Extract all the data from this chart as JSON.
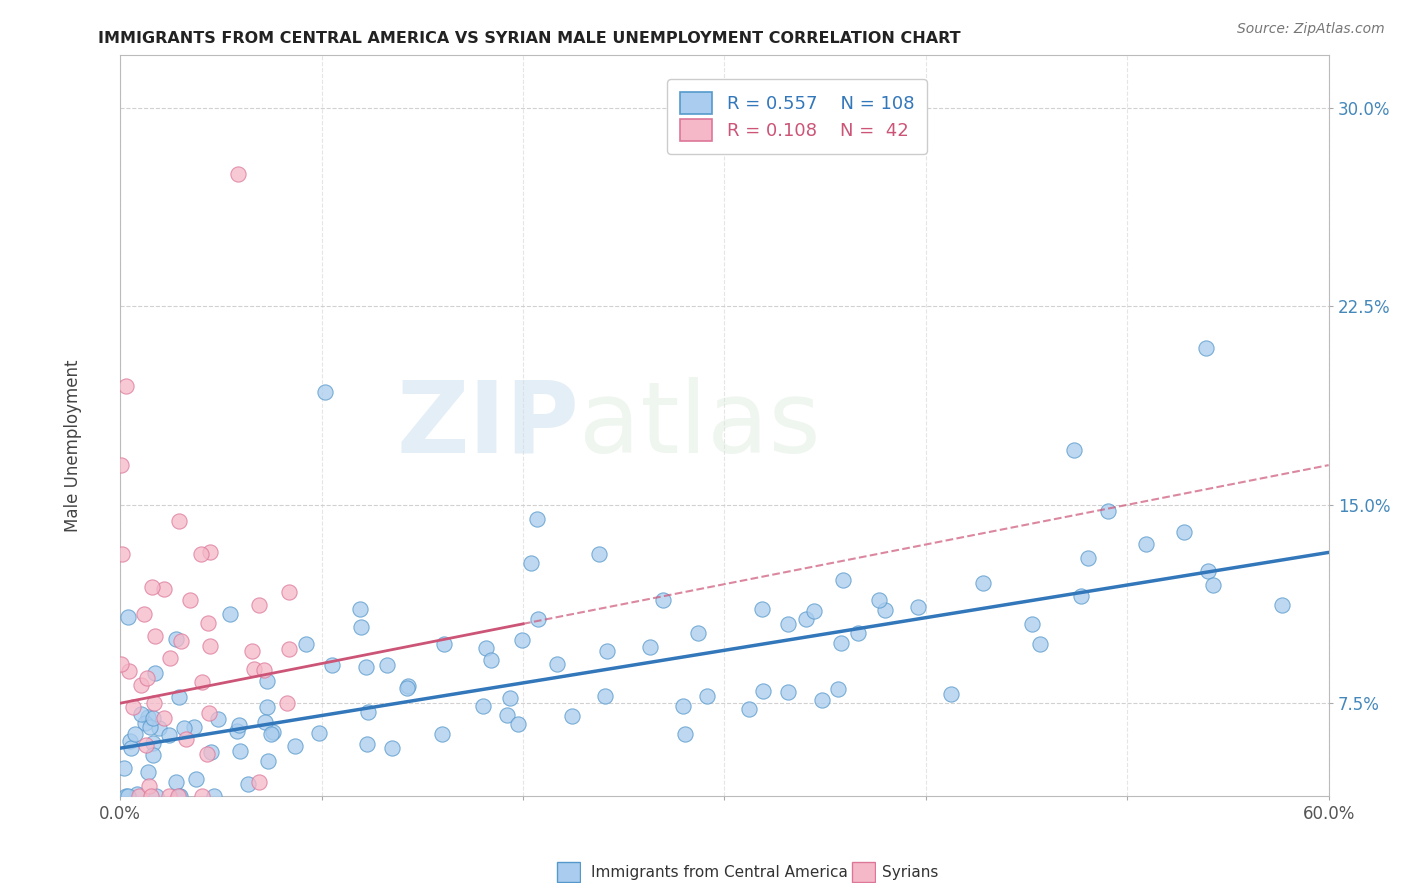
{
  "title": "IMMIGRANTS FROM CENTRAL AMERICA VS SYRIAN MALE UNEMPLOYMENT CORRELATION CHART",
  "source": "Source: ZipAtlas.com",
  "ylabel": "Male Unemployment",
  "xlim": [
    0.0,
    0.6
  ],
  "ylim": [
    0.04,
    0.32
  ],
  "xticks": [
    0.0,
    0.1,
    0.2,
    0.3,
    0.4,
    0.5,
    0.6
  ],
  "xtick_labels": [
    "0.0%",
    "",
    "",
    "",
    "",
    "",
    "60.0%"
  ],
  "ytick_labels": [
    "7.5%",
    "15.0%",
    "22.5%",
    "30.0%"
  ],
  "yticks": [
    0.075,
    0.15,
    0.225,
    0.3
  ],
  "blue_color": "#aaccee",
  "blue_edge_color": "#5599cc",
  "blue_line_color": "#3377bb",
  "pink_color": "#f5b8c8",
  "pink_edge_color": "#dd7799",
  "pink_line_color": "#cc5577",
  "background_color": "#ffffff",
  "grid_color": "#cccccc",
  "watermark": "ZIPatlas",
  "R_blue": 0.557,
  "N_blue": 108,
  "R_pink": 0.108,
  "N_pink": 42,
  "blue_line_x0": 0.0,
  "blue_line_y0": 0.058,
  "blue_line_x1": 0.6,
  "blue_line_y1": 0.132,
  "pink_line_x0": 0.0,
  "pink_line_y0": 0.075,
  "pink_line_x1": 0.6,
  "pink_line_y1": 0.165
}
